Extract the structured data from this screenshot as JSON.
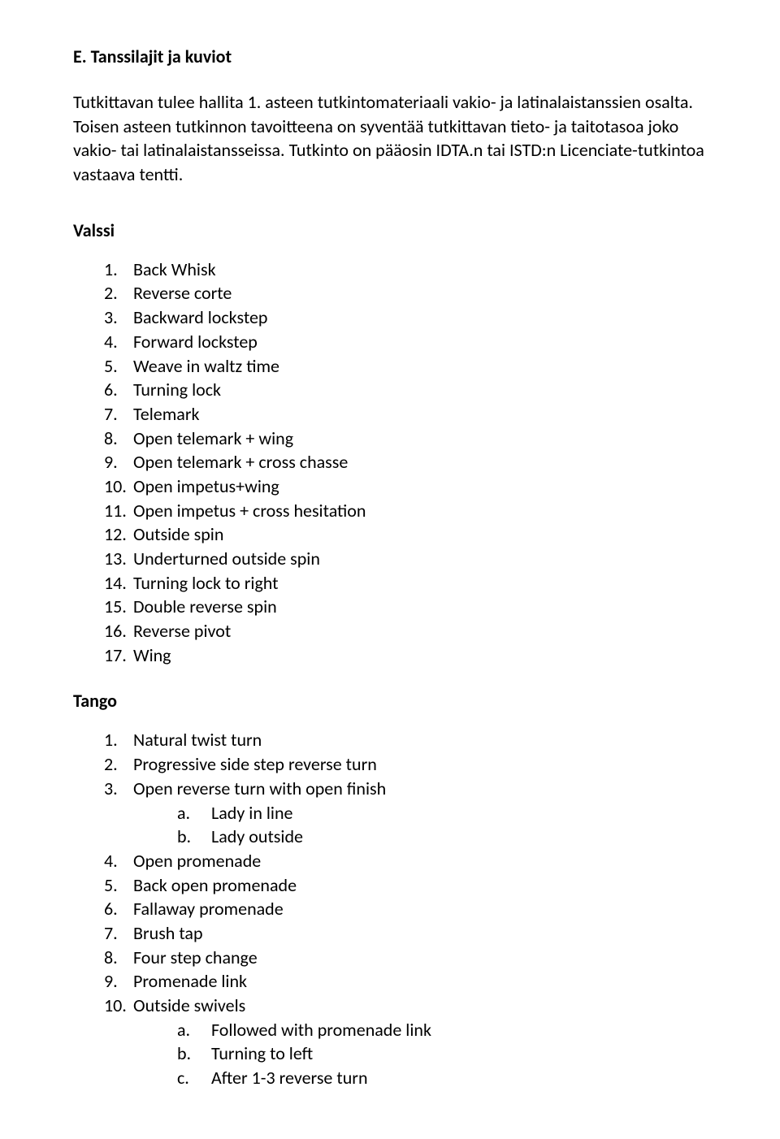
{
  "heading": "E. Tanssilajit ja kuviot",
  "intro": "Tutkittavan tulee hallita 1. asteen tutkintomateriaali vakio- ja latinalaistanssien osalta. Toisen asteen tutkinnon tavoitteena on syventää tutkittavan tieto- ja taitotasoa joko vakio- tai latinalaistansseissa. Tutkinto on pääosin IDTA.n tai ISTD:n Licenciate-tutkintoa vastaava tentti.",
  "sections": [
    {
      "title": "Valssi",
      "items": [
        {
          "n": "1.",
          "t": "Back Whisk"
        },
        {
          "n": "2.",
          "t": "Reverse corte"
        },
        {
          "n": "3.",
          "t": "Backward lockstep"
        },
        {
          "n": "4.",
          "t": "Forward lockstep"
        },
        {
          "n": "5.",
          "t": "Weave in waltz time"
        },
        {
          "n": "6.",
          "t": "Turning lock"
        },
        {
          "n": "7.",
          "t": "Telemark"
        },
        {
          "n": "8.",
          "t": "Open telemark + wing"
        },
        {
          "n": "9.",
          "t": "Open telemark + cross chasse"
        },
        {
          "n": "10.",
          "t": "Open impetus+wing"
        },
        {
          "n": "11.",
          "t": "Open impetus + cross hesitation"
        },
        {
          "n": "12.",
          "t": "Outside spin"
        },
        {
          "n": "13.",
          "t": "Underturned outside spin"
        },
        {
          "n": "14.",
          "t": "Turning lock to right"
        },
        {
          "n": "15.",
          "t": "Double reverse spin"
        },
        {
          "n": "16.",
          "t": "Reverse pivot"
        },
        {
          "n": "17.",
          "t": "Wing"
        }
      ]
    },
    {
      "title": "Tango",
      "items": [
        {
          "n": "1.",
          "t": "Natural twist turn"
        },
        {
          "n": "2.",
          "t": "Progressive side step reverse turn"
        },
        {
          "n": "3.",
          "t": "Open reverse turn with open finish",
          "sub": [
            {
              "l": "a.",
              "t": "Lady in line"
            },
            {
              "l": "b.",
              "t": "Lady outside"
            }
          ]
        },
        {
          "n": "4.",
          "t": "Open promenade"
        },
        {
          "n": "5.",
          "t": "Back open promenade"
        },
        {
          "n": "6.",
          "t": "Fallaway promenade"
        },
        {
          "n": "7.",
          "t": "Brush tap"
        },
        {
          "n": "8.",
          "t": "Four step change"
        },
        {
          "n": "9.",
          "t": "Promenade link"
        },
        {
          "n": "10.",
          "t": "Outside swivels",
          "sub": [
            {
              "l": "a.",
              "t": "Followed with promenade link"
            },
            {
              "l": "b.",
              "t": "Turning to left"
            },
            {
              "l": "c.",
              "t": "After 1-3 reverse turn"
            }
          ]
        }
      ]
    }
  ],
  "colors": {
    "text": "#000000",
    "background": "#ffffff"
  },
  "fontsize_body": 22,
  "fontsize_heading": 22
}
